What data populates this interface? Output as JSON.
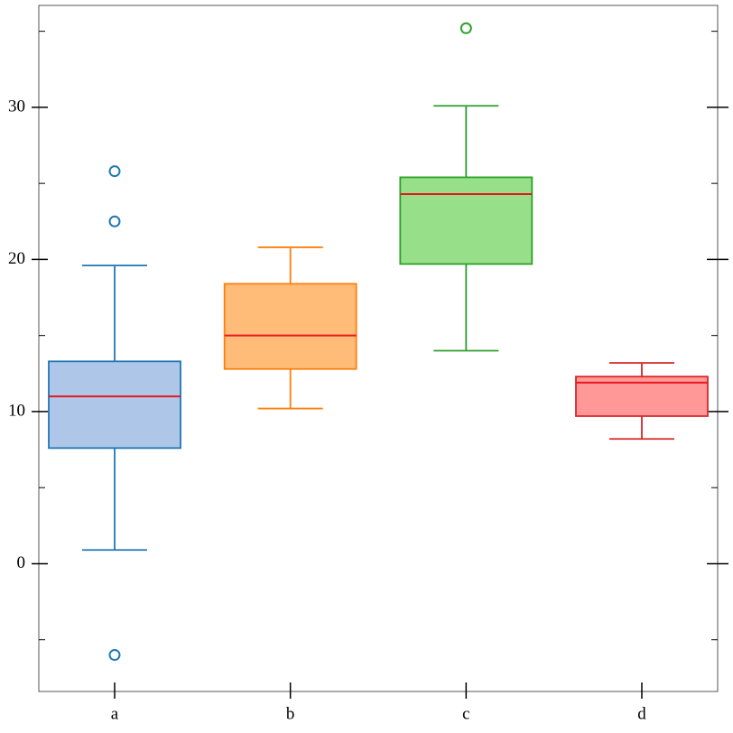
{
  "chart_data": {
    "type": "box",
    "categories": [
      "a",
      "b",
      "c",
      "d"
    ],
    "boxes": [
      {
        "whisker_low": 0.9,
        "q1": 7.6,
        "median": 11.0,
        "q3": 13.3,
        "whisker_high": 19.6,
        "outliers": [
          25.8,
          22.5,
          -6.0
        ]
      },
      {
        "whisker_low": 10.2,
        "q1": 12.8,
        "median": 15.0,
        "q3": 18.4,
        "whisker_high": 20.8,
        "outliers": []
      },
      {
        "whisker_low": 14.0,
        "q1": 19.7,
        "median": 24.3,
        "q3": 25.4,
        "whisker_high": 30.1,
        "outliers": [
          35.2
        ]
      },
      {
        "whisker_low": 8.2,
        "q1": 9.7,
        "median": 11.9,
        "q3": 12.3,
        "whisker_high": 13.2,
        "outliers": []
      }
    ],
    "colors": [
      "#1f77b4",
      "#ff7f0e",
      "#2ca02c",
      "#d62728"
    ],
    "fill_colors": [
      "#aec7e8",
      "#ffbb78",
      "#98df8a",
      "#ff9896"
    ],
    "median_color": "#e8171c",
    "ylim": [
      -8.4,
      36.7
    ],
    "yticks": [
      0,
      10,
      20,
      30
    ],
    "yminor_ticks": [
      -5,
      5,
      15,
      25,
      35
    ]
  }
}
